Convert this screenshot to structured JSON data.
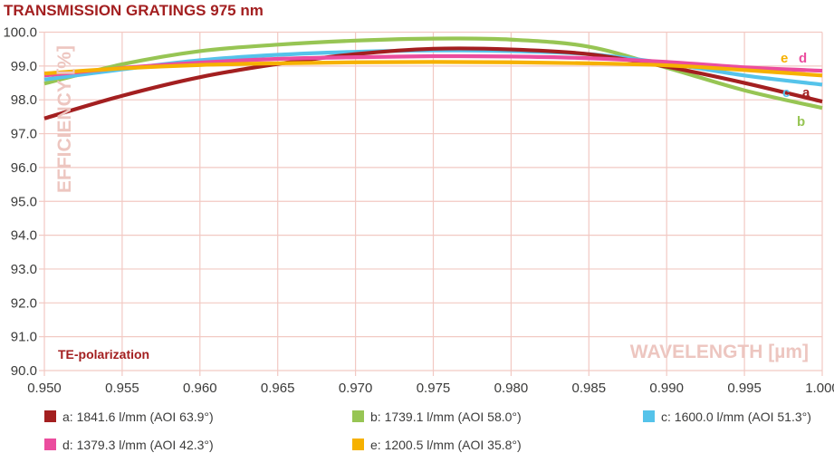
{
  "title": "TRANSMISSION GRATINGS 975 nm",
  "axes": {
    "x_label": "WAVELENGTH [µm]",
    "y_label": "EFFICIENCY [%]"
  },
  "annotations": {
    "polarization": "TE-polarization"
  },
  "colors": {
    "title": "#a31f20",
    "grid": "#f2c9c3",
    "axis_label": "#edc6c0",
    "tick_text": "#3b3b3a",
    "legend_text": "#3c3c3b"
  },
  "curve_end_labels": [
    {
      "text": "e",
      "color": "#f6b100"
    },
    {
      "text": "d",
      "color": "#eb4d9e"
    },
    {
      "text": "c",
      "color": "#55c3ea"
    },
    {
      "text": "a",
      "color": "#a31f20"
    },
    {
      "text": "b",
      "color": "#97c554"
    }
  ],
  "legend": {
    "items": [
      {
        "key": "a",
        "label": "a: 1841.6 l/mm (AOI 63.9°)",
        "color": "#a31f20"
      },
      {
        "key": "b",
        "label": "b: 1739.1 l/mm (AOI 58.0°)",
        "color": "#97c554"
      },
      {
        "key": "c",
        "label": "c: 1600.0 l/mm (AOI 51.3°)",
        "color": "#55c3ea"
      },
      {
        "key": "d",
        "label": "d: 1379.3 l/mm (AOI 42.3°)",
        "color": "#eb4d9e"
      },
      {
        "key": "e",
        "label": "e: 1200.5 l/mm (AOI 35.8°)",
        "color": "#f6b100"
      }
    ]
  },
  "chart_data": {
    "type": "line",
    "title": "TRANSMISSION GRATINGS 975 nm",
    "xlabel": "WAVELENGTH [µm]",
    "ylabel": "EFFICIENCY [%]",
    "annotation": "TE-polarization",
    "xlim": [
      0.95,
      1.0
    ],
    "ylim": [
      90.0,
      100.0
    ],
    "grid": true,
    "legend_position": "bottom",
    "xticks": [
      "0.950",
      "0.955",
      "0.960",
      "0.965",
      "0.970",
      "0.975",
      "0.980",
      "0.985",
      "0.990",
      "0.995",
      "1.000"
    ],
    "yticks": [
      "100.0",
      "99.0",
      "98.0",
      "97.0",
      "96.0",
      "95.0",
      "94.0",
      "93.0",
      "92.0",
      "91.0",
      "90.0"
    ],
    "x": [
      0.95,
      0.955,
      0.96,
      0.965,
      0.97,
      0.975,
      0.98,
      0.985,
      0.99,
      0.995,
      1.0
    ],
    "series": [
      {
        "name": "b: 1739.1 l/mm (AOI 58.0°)",
        "short": "b",
        "color": "#97c554",
        "values": [
          98.48,
          99.05,
          99.44,
          99.63,
          99.75,
          99.81,
          99.78,
          99.57,
          98.95,
          98.28,
          97.76
        ]
      },
      {
        "name": "c: 1600.0 l/mm (AOI 51.3°)",
        "short": "c",
        "color": "#55c3ea",
        "values": [
          98.6,
          98.9,
          99.17,
          99.33,
          99.42,
          99.46,
          99.44,
          99.35,
          99.08,
          98.72,
          98.45
        ]
      },
      {
        "name": "a: 1841.6 l/mm (AOI 63.9°)",
        "short": "a",
        "color": "#a31f20",
        "values": [
          97.45,
          98.12,
          98.67,
          99.06,
          99.35,
          99.51,
          99.49,
          99.35,
          98.98,
          98.5,
          97.95
        ]
      },
      {
        "name": "d: 1379.3 l/mm (AOI 42.3°)",
        "short": "d",
        "color": "#eb4d9e",
        "values": [
          98.72,
          98.94,
          99.1,
          99.21,
          99.26,
          99.29,
          99.28,
          99.23,
          99.12,
          98.96,
          98.86
        ]
      },
      {
        "name": "e: 1200.5 l/mm (AOI 35.8°)",
        "short": "e",
        "color": "#f6b100",
        "values": [
          98.78,
          98.93,
          99.03,
          99.08,
          99.11,
          99.12,
          99.11,
          99.08,
          99.02,
          98.88,
          98.72
        ]
      }
    ]
  }
}
